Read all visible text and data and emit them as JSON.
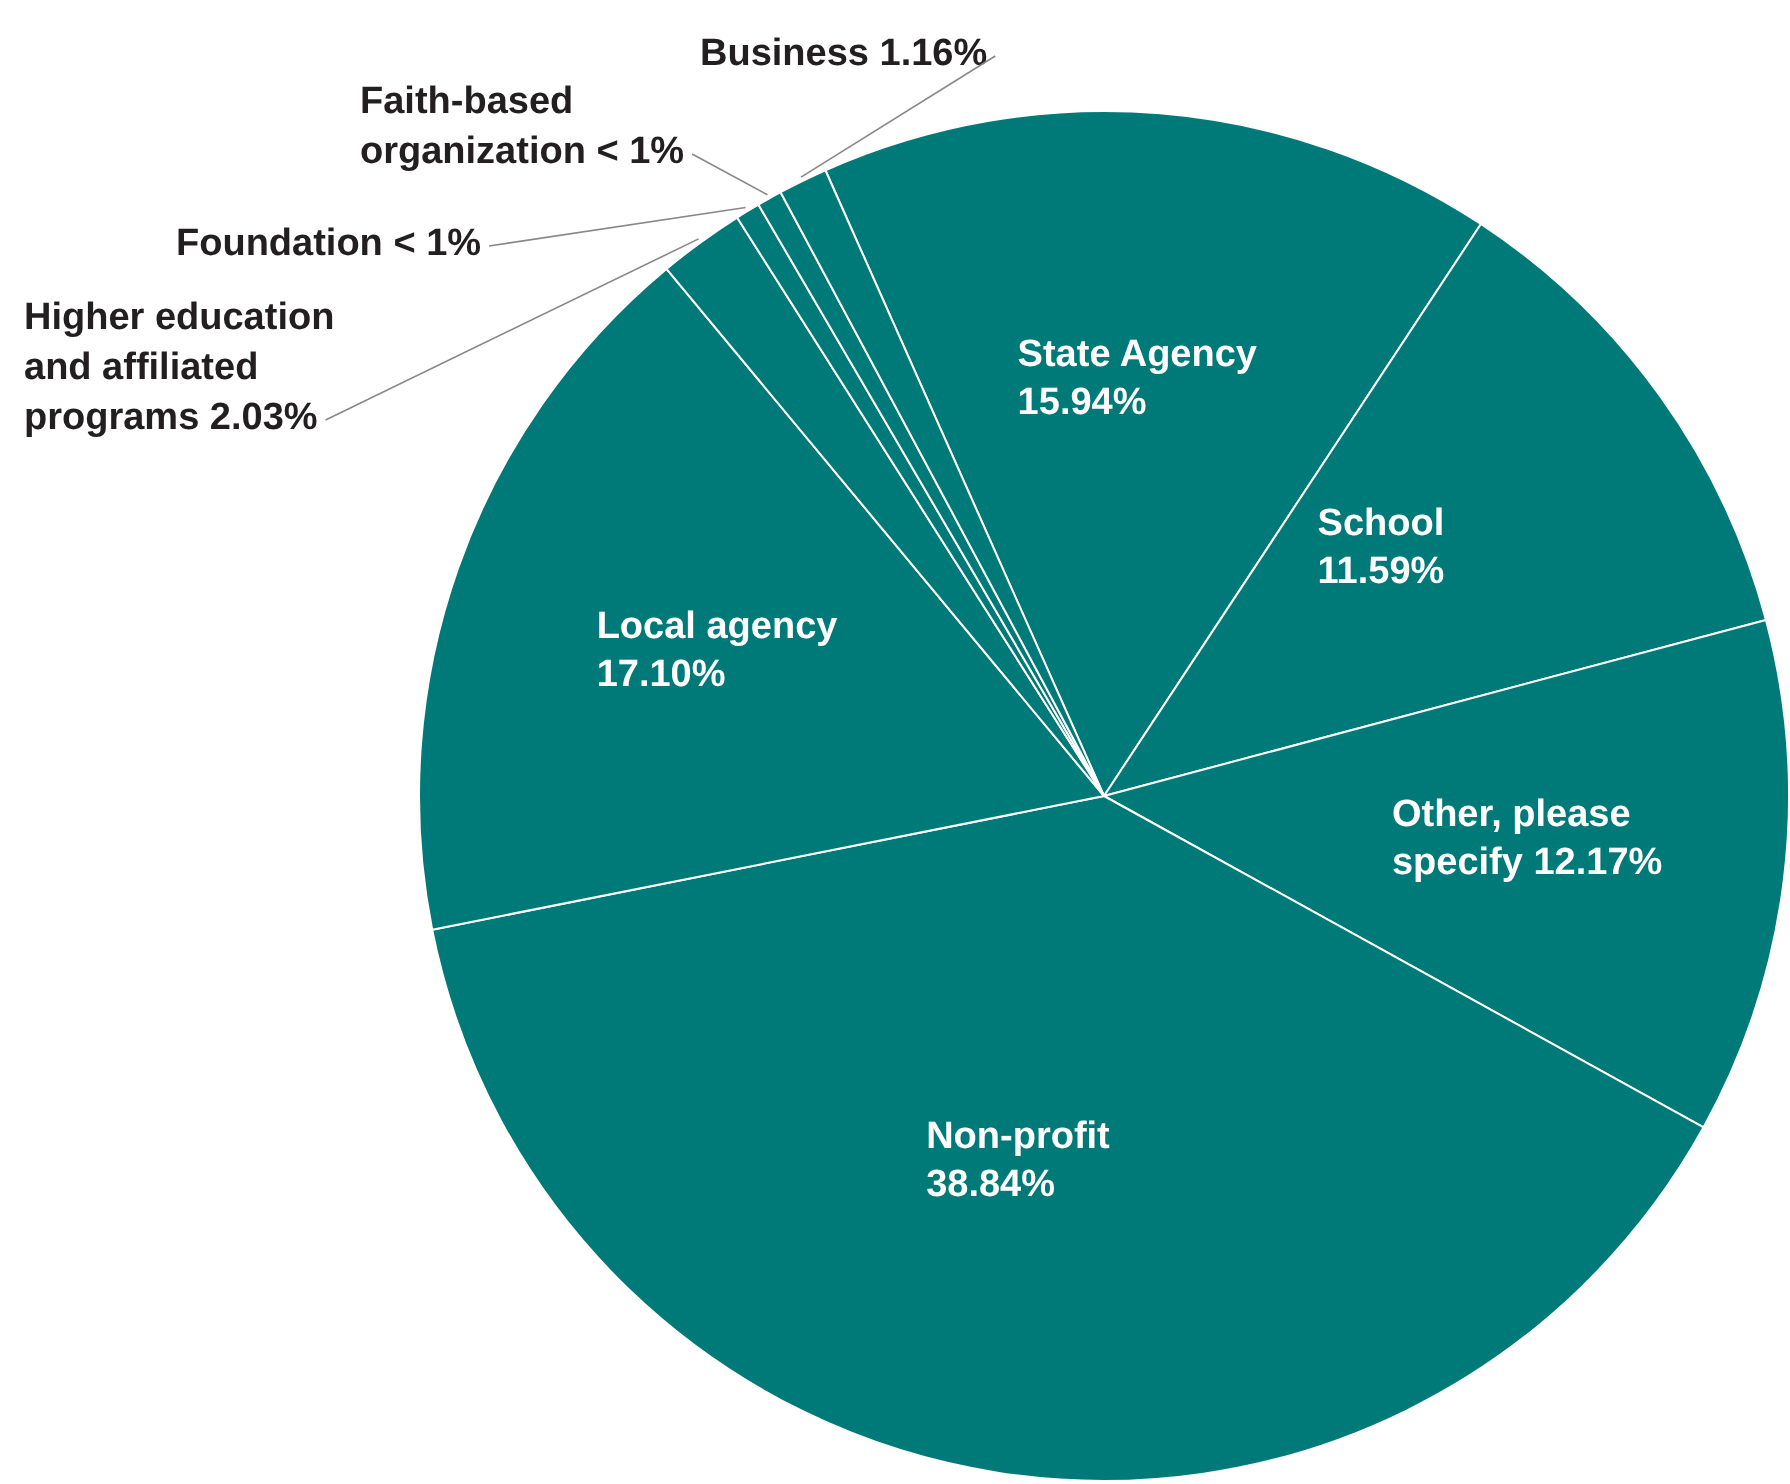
{
  "chart_data": {
    "type": "pie",
    "categories": [
      "State Agency",
      "School",
      "Other, please specify",
      "Non-profit",
      "Local agency",
      "Higher education and affiliated programs",
      "Foundation",
      "Faith-based organization",
      "Business"
    ],
    "values": [
      15.94,
      11.59,
      12.17,
      38.84,
      17.1,
      2.03,
      0.58,
      0.59,
      1.16
    ],
    "value_labels": [
      "15.94%",
      "11.59%",
      "12.17%",
      "38.84%",
      "17.10%",
      "2.03%",
      "< 1%",
      "< 1%",
      "1.16%"
    ],
    "colors": [
      "#007a78",
      "#007a78",
      "#007a78",
      "#007a78",
      "#007a78",
      "#007a78",
      "#007a78",
      "#007a78",
      "#007a78"
    ],
    "legend": false
  }
}
